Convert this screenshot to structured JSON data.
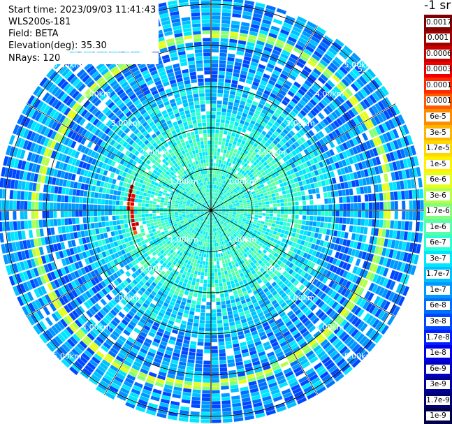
{
  "header": {
    "start_time": "Start time: 2023/09/03 11:41:43",
    "instrument": "WLS200s-181",
    "field": "Field: BETA",
    "elevation": "Elevation(deg): 35.30",
    "nrays": "NRays: 120"
  },
  "colorbar": {
    "unit": "-1 sr",
    "labels": [
      "0.0017",
      "0.001",
      "0.0006",
      "0.0003",
      "0.00017",
      "0.0001",
      "6e-5",
      "3e-5",
      "1.7e-5",
      "1e-5",
      "6e-6",
      "3e-6",
      "1.7e-6",
      "1e-6",
      "6e-7",
      "3e-7",
      "1.7e-7",
      "1e-7",
      "6e-8",
      "3e-8",
      "1.7e-8",
      "1e-8",
      "6e-9",
      "3e-9",
      "1.7e-9",
      "1e-9"
    ],
    "colors": [
      "#7f0000",
      "#a00000",
      "#c80000",
      "#ee0000",
      "#ff2a00",
      "#ff5a00",
      "#ff8c00",
      "#ffb400",
      "#ffd800",
      "#fff200",
      "#e6ff1a",
      "#b5ff48",
      "#86ff78",
      "#57ffa8",
      "#2affd6",
      "#00e6ff",
      "#00c0ff",
      "#0098ff",
      "#0070ff",
      "#0048ff",
      "#0020ff",
      "#0000e8",
      "#0000c0",
      "#000098",
      "#000070",
      "#00004a"
    ]
  },
  "chart_data": {
    "type": "heatmap",
    "projection": "polar PPI",
    "nrays": 120,
    "range_rings_km": [
      1,
      2,
      3,
      4,
      5
    ],
    "range_labels": [
      "1.00km",
      "2.00km",
      "3.00km",
      "4.00km",
      "5.00km"
    ],
    "partial_label": "5.",
    "grid": true,
    "azimuth_lines_deg": [
      0,
      30,
      60,
      90,
      120,
      150,
      180,
      210,
      240,
      270,
      300,
      330
    ]
  }
}
